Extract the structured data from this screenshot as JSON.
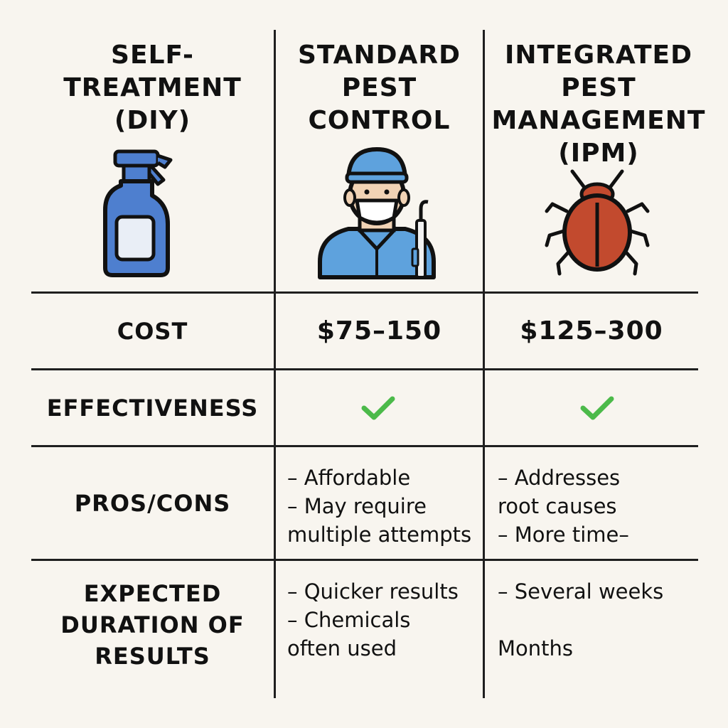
{
  "columns": [
    {
      "title": "SELF-\nTREATMENT\n(DIY)",
      "icon": "spray-bottle-icon"
    },
    {
      "title": "STANDARD\nPEST\nCONTROL",
      "icon": "pest-technician-icon"
    },
    {
      "title": "INTEGRATED\nPEST\nMANAGEMENT\n(IPM)",
      "icon": "bug-icon"
    }
  ],
  "rows": {
    "cost": {
      "label": "COST",
      "standard": "$75–150",
      "ipm": "$125–300"
    },
    "effectiveness": {
      "label": "EFFECTIVENESS",
      "standard": "check",
      "ipm": "check"
    },
    "pros_cons": {
      "label": "PROS/CONS",
      "standard": "– Affordable\n– May require\nmultiple attempts",
      "ipm": "– Addresses\n   root causes\n– More time–"
    },
    "duration": {
      "label": "EXPECTED\nDURATION OF\nRESULTS",
      "standard": "– Quicker results\n– Chemicals\noften used",
      "ipm": "– Several weeks\n\n   Months"
    }
  },
  "colors": {
    "line": "#1f1f1f",
    "background": "#f8f5ef",
    "bottle": "#4e7fcf",
    "technician": "#5ea2dd",
    "bug": "#c24a2e",
    "check": "#4cba4a"
  }
}
